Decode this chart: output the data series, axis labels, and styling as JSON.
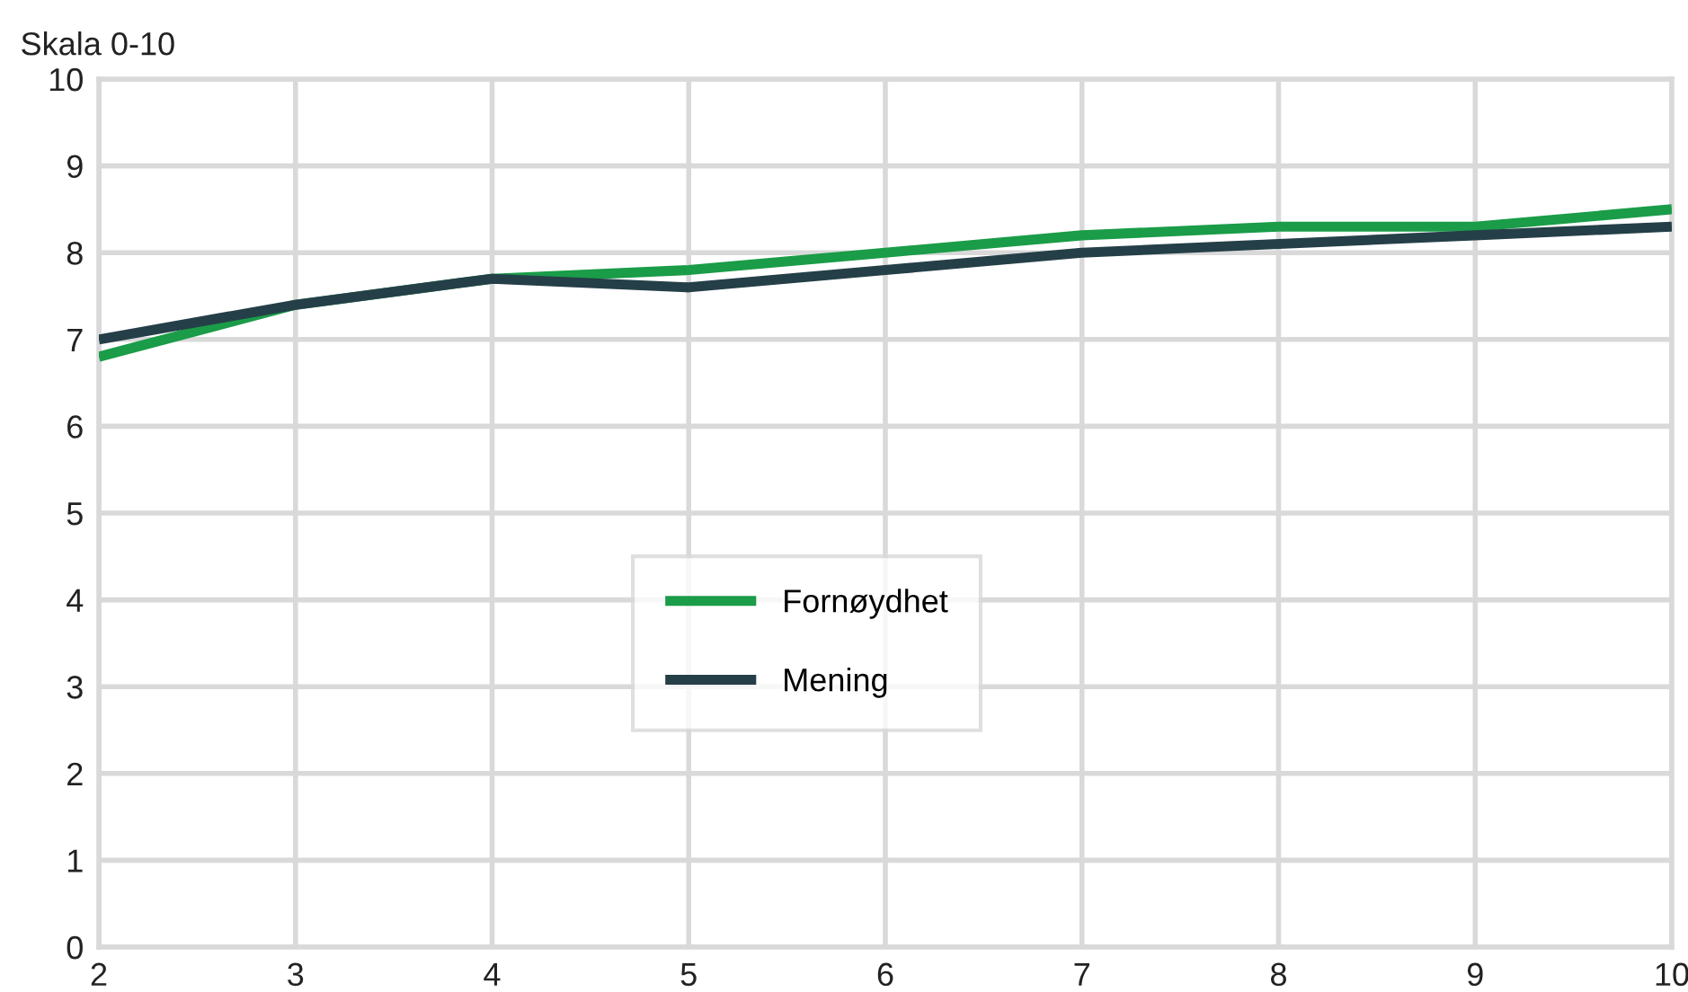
{
  "chart_data": {
    "type": "line",
    "ylabel": "Skala 0-10",
    "x": [
      2,
      3,
      4,
      5,
      6,
      7,
      8,
      9,
      10
    ],
    "series": [
      {
        "name": "Fornøydhet",
        "color": "#1a9c48",
        "values": [
          6.8,
          7.4,
          7.7,
          7.8,
          8.0,
          8.2,
          8.3,
          8.3,
          8.5
        ]
      },
      {
        "name": "Mening",
        "color": "#253f48",
        "values": [
          7.0,
          7.4,
          7.7,
          7.6,
          7.8,
          8.0,
          8.1,
          8.2,
          8.3
        ]
      }
    ],
    "xlim": [
      2,
      10
    ],
    "xticks": [
      2,
      3,
      4,
      5,
      6,
      7,
      8,
      9,
      10
    ],
    "ylim": [
      0,
      10
    ],
    "yticks": [
      0,
      1,
      2,
      3,
      4,
      5,
      6,
      7,
      8,
      9,
      10
    ],
    "grid": true,
    "legend": "center",
    "marker": "none",
    "line_style": "solid"
  }
}
